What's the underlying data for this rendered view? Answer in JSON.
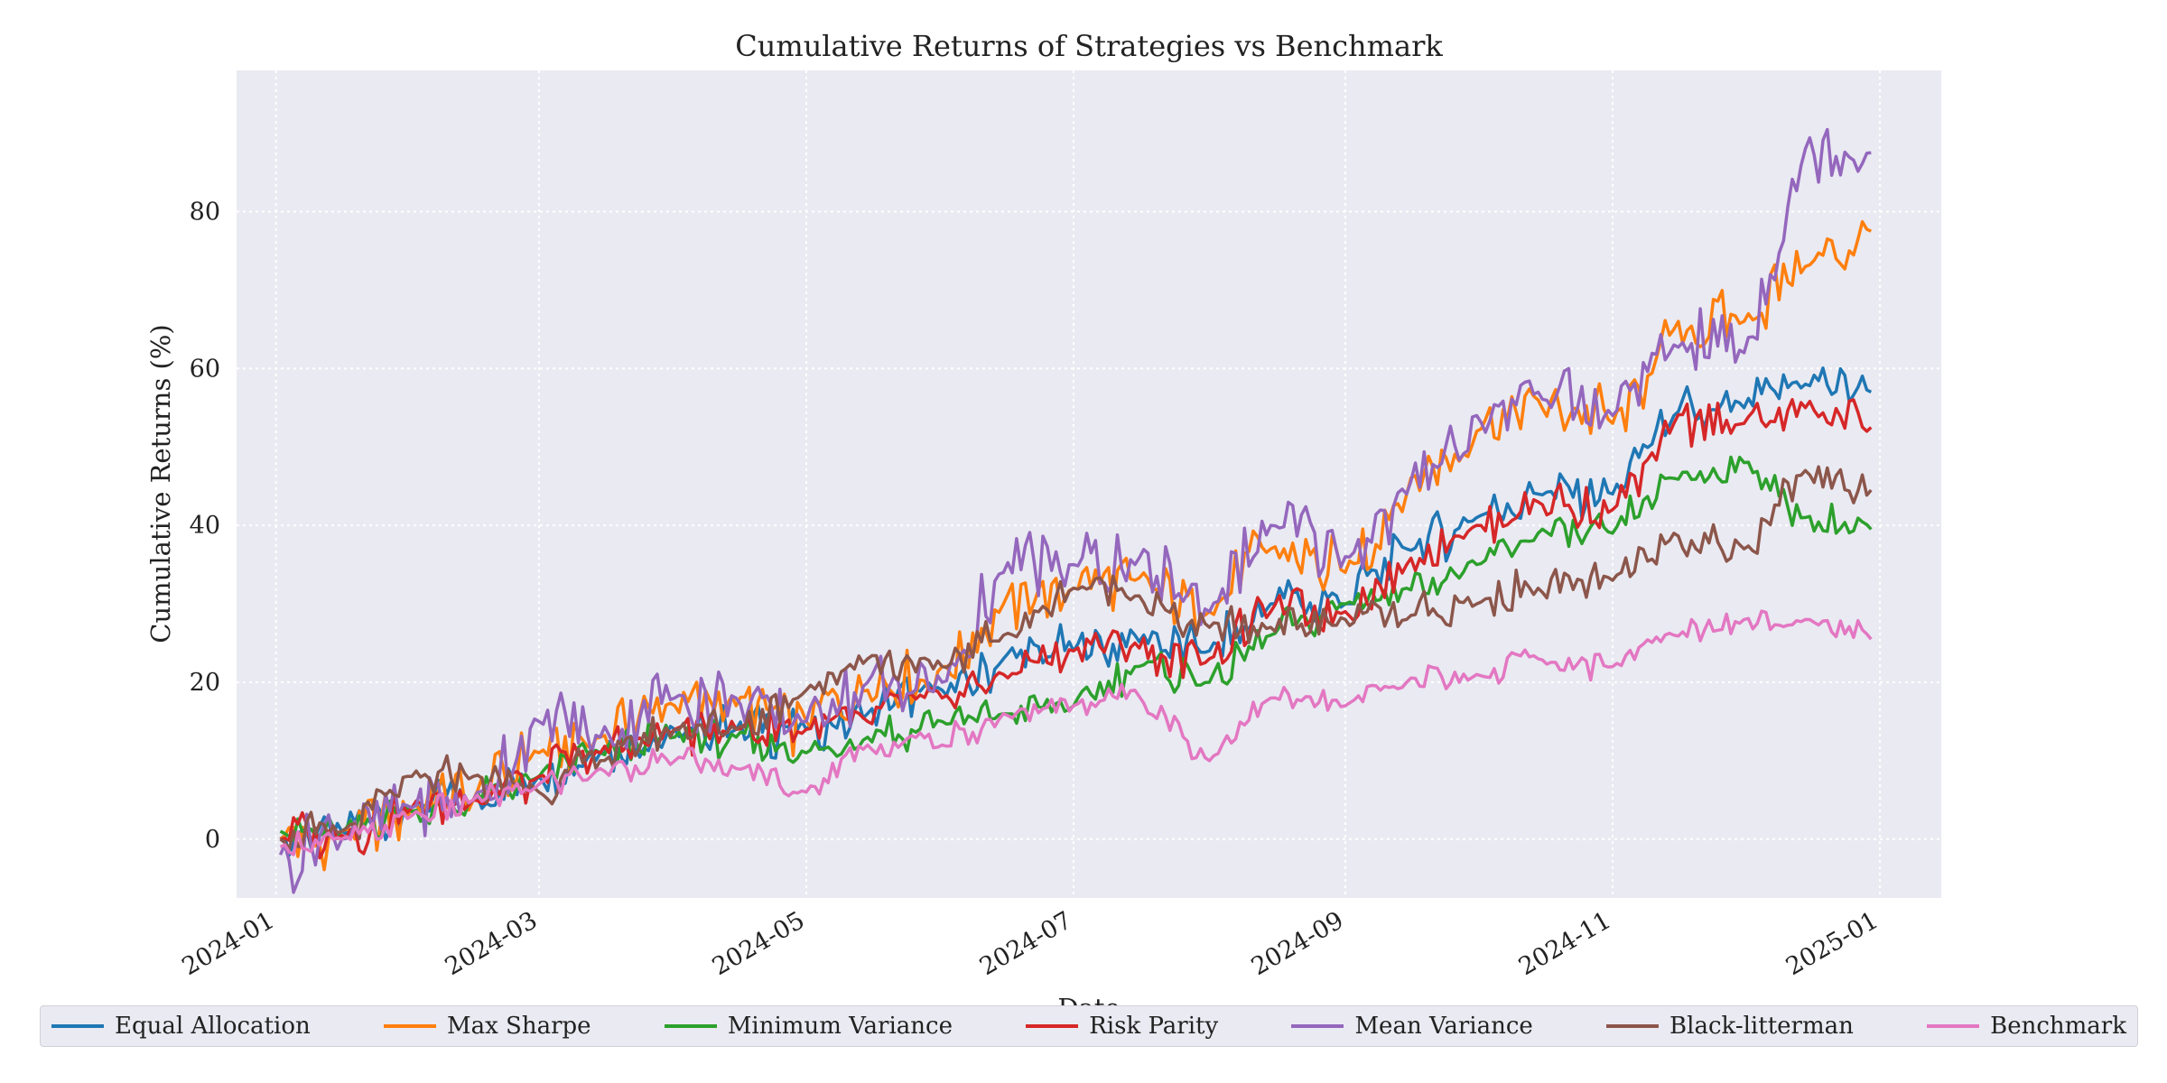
{
  "chart_data": {
    "type": "line",
    "title": "Cumulative Returns of Strategies vs Benchmark",
    "xlabel": "Date",
    "ylabel": "Cumulative Returns (%)",
    "x_ticks": [
      "2024-01",
      "2024-03",
      "2024-05",
      "2024-07",
      "2024-09",
      "2024-11",
      "2025-01"
    ],
    "y_ticks": [
      0,
      20,
      40,
      60,
      80
    ],
    "xlim": [
      "2023-12-23",
      "2025-01-15"
    ],
    "ylim": [
      -7.5,
      98
    ],
    "grid": true,
    "legend_position": "bottom",
    "x": [
      "2024-01-02",
      "2024-01-16",
      "2024-02-01",
      "2024-02-15",
      "2024-03-01",
      "2024-03-15",
      "2024-04-01",
      "2024-04-15",
      "2024-05-01",
      "2024-05-15",
      "2024-06-01",
      "2024-06-15",
      "2024-07-01",
      "2024-07-15",
      "2024-08-01",
      "2024-08-15",
      "2024-09-01",
      "2024-09-15",
      "2024-10-01",
      "2024-10-15",
      "2024-11-01",
      "2024-11-15",
      "2024-12-01",
      "2024-12-15",
      "2024-12-30"
    ],
    "series": [
      {
        "name": "Equal Allocation",
        "color": "#1f77b4",
        "values": [
          0,
          1,
          4,
          5,
          8,
          11,
          14,
          14,
          14,
          16,
          19,
          23,
          24,
          26,
          24,
          30,
          30,
          37,
          41,
          44,
          44,
          54,
          55,
          58,
          57
        ]
      },
      {
        "name": "Max Sharpe",
        "color": "#ff7f0e",
        "values": [
          0,
          1,
          4,
          5,
          11,
          13,
          17,
          17,
          15,
          19,
          22,
          30,
          32,
          33,
          29,
          37,
          34,
          44,
          52,
          56,
          53,
          65,
          66,
          73,
          77.5
        ]
      },
      {
        "name": "Minimum Variance",
        "color": "#2ca02c",
        "values": [
          1,
          1,
          3.5,
          5,
          8,
          11,
          13,
          13,
          11,
          13,
          15,
          16,
          17,
          22,
          20,
          26,
          30,
          32,
          35,
          39,
          39,
          46,
          48,
          41,
          39.5
        ]
      },
      {
        "name": "Risk Parity",
        "color": "#d62728",
        "values": [
          0,
          0.5,
          4,
          5,
          8,
          11,
          14,
          14,
          14,
          15,
          18,
          21,
          24,
          25,
          23,
          29,
          29,
          35,
          40,
          43,
          42,
          53,
          53,
          55,
          52.5
        ]
      },
      {
        "name": "Mean Variance",
        "color": "#9467bd",
        "values": [
          -2,
          0,
          4,
          5,
          15,
          13,
          18,
          18,
          15,
          20,
          20,
          34,
          35,
          35,
          29,
          40,
          36,
          44,
          54,
          57,
          54,
          63,
          62,
          88,
          87.5
        ]
      },
      {
        "name": "Black-litterman",
        "color": "#8c564b",
        "values": [
          0,
          1,
          8,
          8,
          6,
          10,
          14,
          14,
          19,
          23,
          22,
          26,
          32,
          31,
          27,
          27,
          28,
          28,
          30,
          32,
          33,
          39,
          37,
          47,
          44.5
        ]
      },
      {
        "name": "Benchmark",
        "color": "#e377c2",
        "values": [
          -1,
          0,
          3,
          5,
          7,
          9,
          10,
          9,
          6,
          12,
          12,
          16,
          17,
          19,
          10,
          18,
          17,
          20,
          21,
          23,
          22,
          26,
          28,
          28,
          25.5
        ]
      }
    ]
  }
}
